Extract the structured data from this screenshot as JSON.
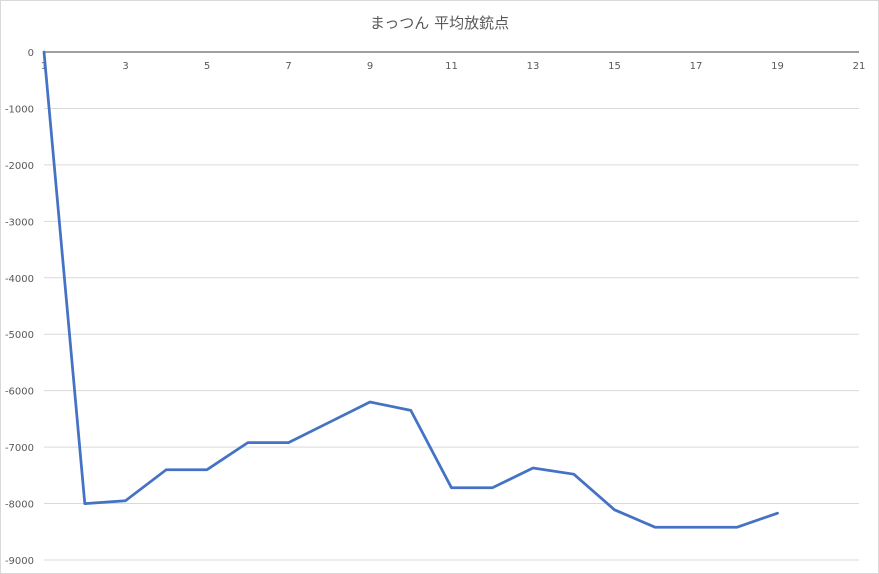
{
  "chart_data": {
    "type": "line",
    "title": "まっつん 平均放銃点",
    "xlabel": "",
    "ylabel": "",
    "x": [
      1,
      2,
      3,
      4,
      5,
      6,
      7,
      8,
      9,
      10,
      11,
      12,
      13,
      14,
      15,
      16,
      17,
      18,
      19
    ],
    "series": [
      {
        "values": [
          0,
          -8000,
          -7950,
          -7400,
          -7400,
          -6920,
          -6920,
          -6560,
          -6200,
          -6350,
          -7720,
          -7720,
          -7370,
          -7480,
          -8110,
          -8420,
          -8420,
          -8420,
          -8170
        ]
      }
    ],
    "xlim": [
      1,
      21
    ],
    "ylim": [
      -9000,
      0
    ],
    "x_ticks": [
      1,
      3,
      5,
      7,
      9,
      11,
      13,
      15,
      17,
      19,
      21
    ],
    "y_ticks": [
      0,
      -1000,
      -2000,
      -3000,
      -4000,
      -5000,
      -6000,
      -7000,
      -8000,
      -9000
    ],
    "grid": true,
    "legend": "none",
    "colors": {
      "line": "#4472c4",
      "grid": "#d9d9d9",
      "axis": "#404040",
      "text": "#595959"
    }
  }
}
